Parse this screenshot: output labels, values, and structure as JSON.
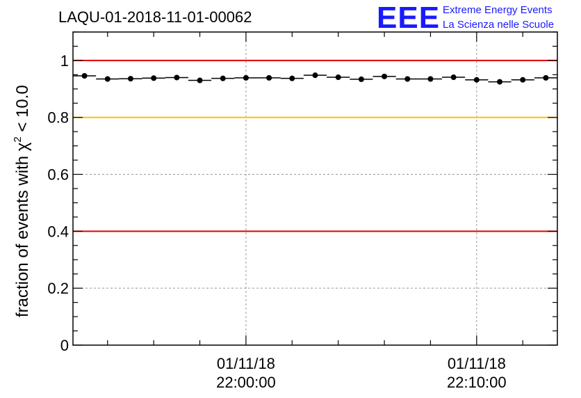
{
  "header": {
    "title": "LAQU-01-2018-11-01-00062",
    "logo_text": "EEE",
    "logo_line1": "Extreme Energy Events",
    "logo_line2": "La Scienza nelle Scuole"
  },
  "colors": {
    "red_line": "#e00000",
    "yellow_line": "#ffc000",
    "logo": "#1a1aff",
    "grid": "#999999",
    "marker": "#000000"
  },
  "chart_data": {
    "type": "scatter",
    "title": "LAQU-01-2018-11-01-00062",
    "ylabel_prefix": "fraction of events with ",
    "ylabel_chi": "χ",
    "ylabel_exp": "2",
    "ylabel_suffix": " < 10.0",
    "xlabel": "",
    "x_unit": "minutes since 01/11/18 21:52:30",
    "xlim": [
      0,
      21
    ],
    "ylim": [
      0,
      1.1
    ],
    "ytick_values": [
      0,
      0.2,
      0.4,
      0.6,
      0.8,
      1
    ],
    "ytick_labels": [
      "0",
      "0.2",
      "0.4",
      "0.6",
      "0.8",
      "1"
    ],
    "xtick_major_values": [
      7.5,
      17.5
    ],
    "xtick_labels": [
      {
        "date": "01/11/18",
        "time": "22:00:00"
      },
      {
        "date": "01/11/18",
        "time": "22:10:00"
      }
    ],
    "xtick_minor_step": 2,
    "reference_lines": [
      {
        "y": 1.0,
        "color": "red"
      },
      {
        "y": 0.8,
        "color": "yellow"
      },
      {
        "y": 0.4,
        "color": "red"
      }
    ],
    "series": [
      {
        "name": "fraction chi2 < 10",
        "x": [
          0.5,
          1.5,
          2.5,
          3.5,
          4.5,
          5.5,
          6.5,
          7.5,
          8.5,
          9.5,
          10.5,
          11.5,
          12.5,
          13.5,
          14.5,
          15.5,
          16.5,
          17.5,
          18.5,
          19.5,
          20.5
        ],
        "y": [
          0.946,
          0.935,
          0.936,
          0.938,
          0.94,
          0.93,
          0.937,
          0.939,
          0.939,
          0.937,
          0.948,
          0.941,
          0.934,
          0.944,
          0.935,
          0.935,
          0.941,
          0.932,
          0.925,
          0.932,
          0.939
        ],
        "x_half_width": 0.5
      }
    ]
  }
}
